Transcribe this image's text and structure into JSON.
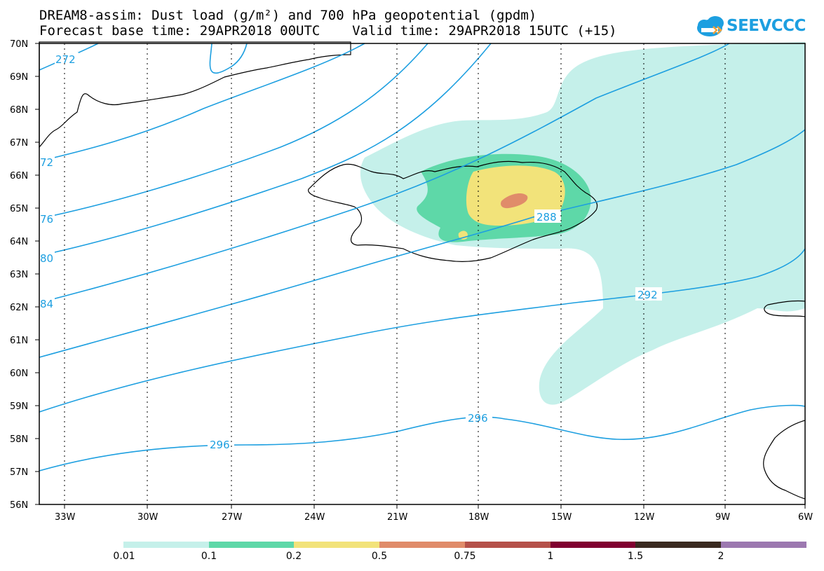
{
  "title": {
    "line1": "DREAM8-assim: Dust load (g/m²) and 700 hPa geopotential (gpdm)",
    "line2": "Forecast base time: 29APR2018 00UTC    Valid time: 29APR2018 15UTC (+15)"
  },
  "logo": {
    "text": "SEEVCCC"
  },
  "axes": {
    "lat_labels": [
      "70N",
      "69N",
      "68N",
      "67N",
      "66N",
      "65N",
      "64N",
      "63N",
      "62N",
      "61N",
      "60N",
      "59N",
      "58N",
      "57N",
      "56N"
    ],
    "lon_labels": [
      "33W",
      "30W",
      "27W",
      "24W",
      "21W",
      "18W",
      "15W",
      "12W",
      "9W",
      "6W"
    ]
  },
  "contours": {
    "color": "#1d9fe0",
    "labels": [
      "272",
      "72",
      "76",
      "80",
      "84",
      "288",
      "292",
      "296",
      "296"
    ]
  },
  "colorbar": {
    "colors": [
      "#c5f0ea",
      "#5ed8a8",
      "#f2e37a",
      "#e08c6a",
      "#b5514a",
      "#800030",
      "#3a2a20",
      "#9c78b0"
    ],
    "labels": [
      "0.01",
      "0.1",
      "0.2",
      "0.5",
      "0.75",
      "1",
      "1.5",
      "2"
    ]
  },
  "dust_colors": {
    "c001": "#c5f0ea",
    "c01": "#5ed8a8",
    "c02": "#f2e37a",
    "c05": "#e08c6a"
  }
}
